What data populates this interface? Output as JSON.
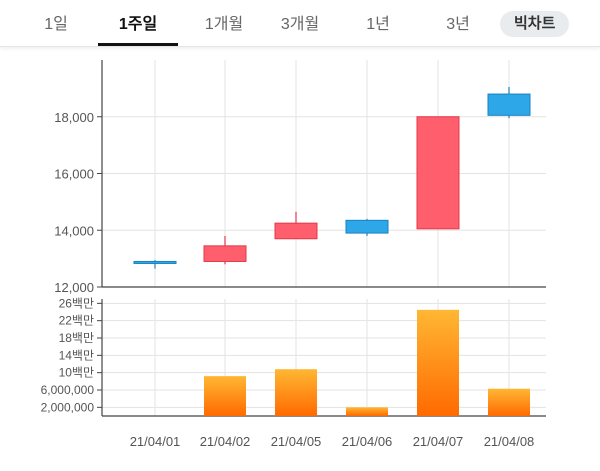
{
  "tabs": [
    {
      "label": "1일",
      "active": false
    },
    {
      "label": "1주일",
      "active": true
    },
    {
      "label": "1개월",
      "active": false
    },
    {
      "label": "3개월",
      "active": false
    },
    {
      "label": "1년",
      "active": false
    },
    {
      "label": "3년",
      "active": false
    },
    {
      "label": "빅차트",
      "active": false
    }
  ],
  "colors": {
    "up_fill": "#ff5f6d",
    "up_stroke": "#e0394a",
    "down_fill": "#2ea7e8",
    "down_stroke": "#1a82c0",
    "volume_top": "#ffb733",
    "volume_bottom": "#ff6a00",
    "grid": "#e3e3e3",
    "axis": "#444444"
  },
  "chart_data": [
    {
      "type": "candlestick",
      "categories": [
        "21/04/01",
        "21/04/02",
        "21/04/05",
        "21/04/06",
        "21/04/07",
        "21/04/08"
      ],
      "ohlc": [
        {
          "open": 12900,
          "high": 12950,
          "low": 12650,
          "close": 12850
        },
        {
          "open": 12900,
          "high": 13800,
          "low": 12800,
          "close": 13450
        },
        {
          "open": 13700,
          "high": 14650,
          "low": 13700,
          "close": 14250
        },
        {
          "open": 14350,
          "high": 14400,
          "low": 13800,
          "close": 13900
        },
        {
          "open": 14050,
          "high": 18000,
          "low": 14050,
          "close": 18000
        },
        {
          "open": 18800,
          "high": 19050,
          "low": 17950,
          "close": 18050
        }
      ],
      "yticks": [
        12000,
        14000,
        16000,
        18000
      ],
      "ytick_labels": [
        "12,000",
        "14,000",
        "16,000",
        "18,000"
      ],
      "ylim": [
        12000,
        20000
      ],
      "grid": true
    },
    {
      "type": "bar",
      "categories": [
        "21/04/01",
        "21/04/02",
        "21/04/05",
        "21/04/06",
        "21/04/07",
        "21/04/08"
      ],
      "values": [
        0,
        9200000,
        10800000,
        2000000,
        24500000,
        6300000
      ],
      "yticks": [
        2000000,
        6000000,
        10000000,
        14000000,
        18000000,
        22000000,
        26000000
      ],
      "ytick_labels": [
        "2,000,000",
        "6,000,000",
        "10백만",
        "14백만",
        "18백만",
        "22백만",
        "26백만"
      ],
      "ylim": [
        0,
        27000000
      ],
      "grid": true
    }
  ]
}
